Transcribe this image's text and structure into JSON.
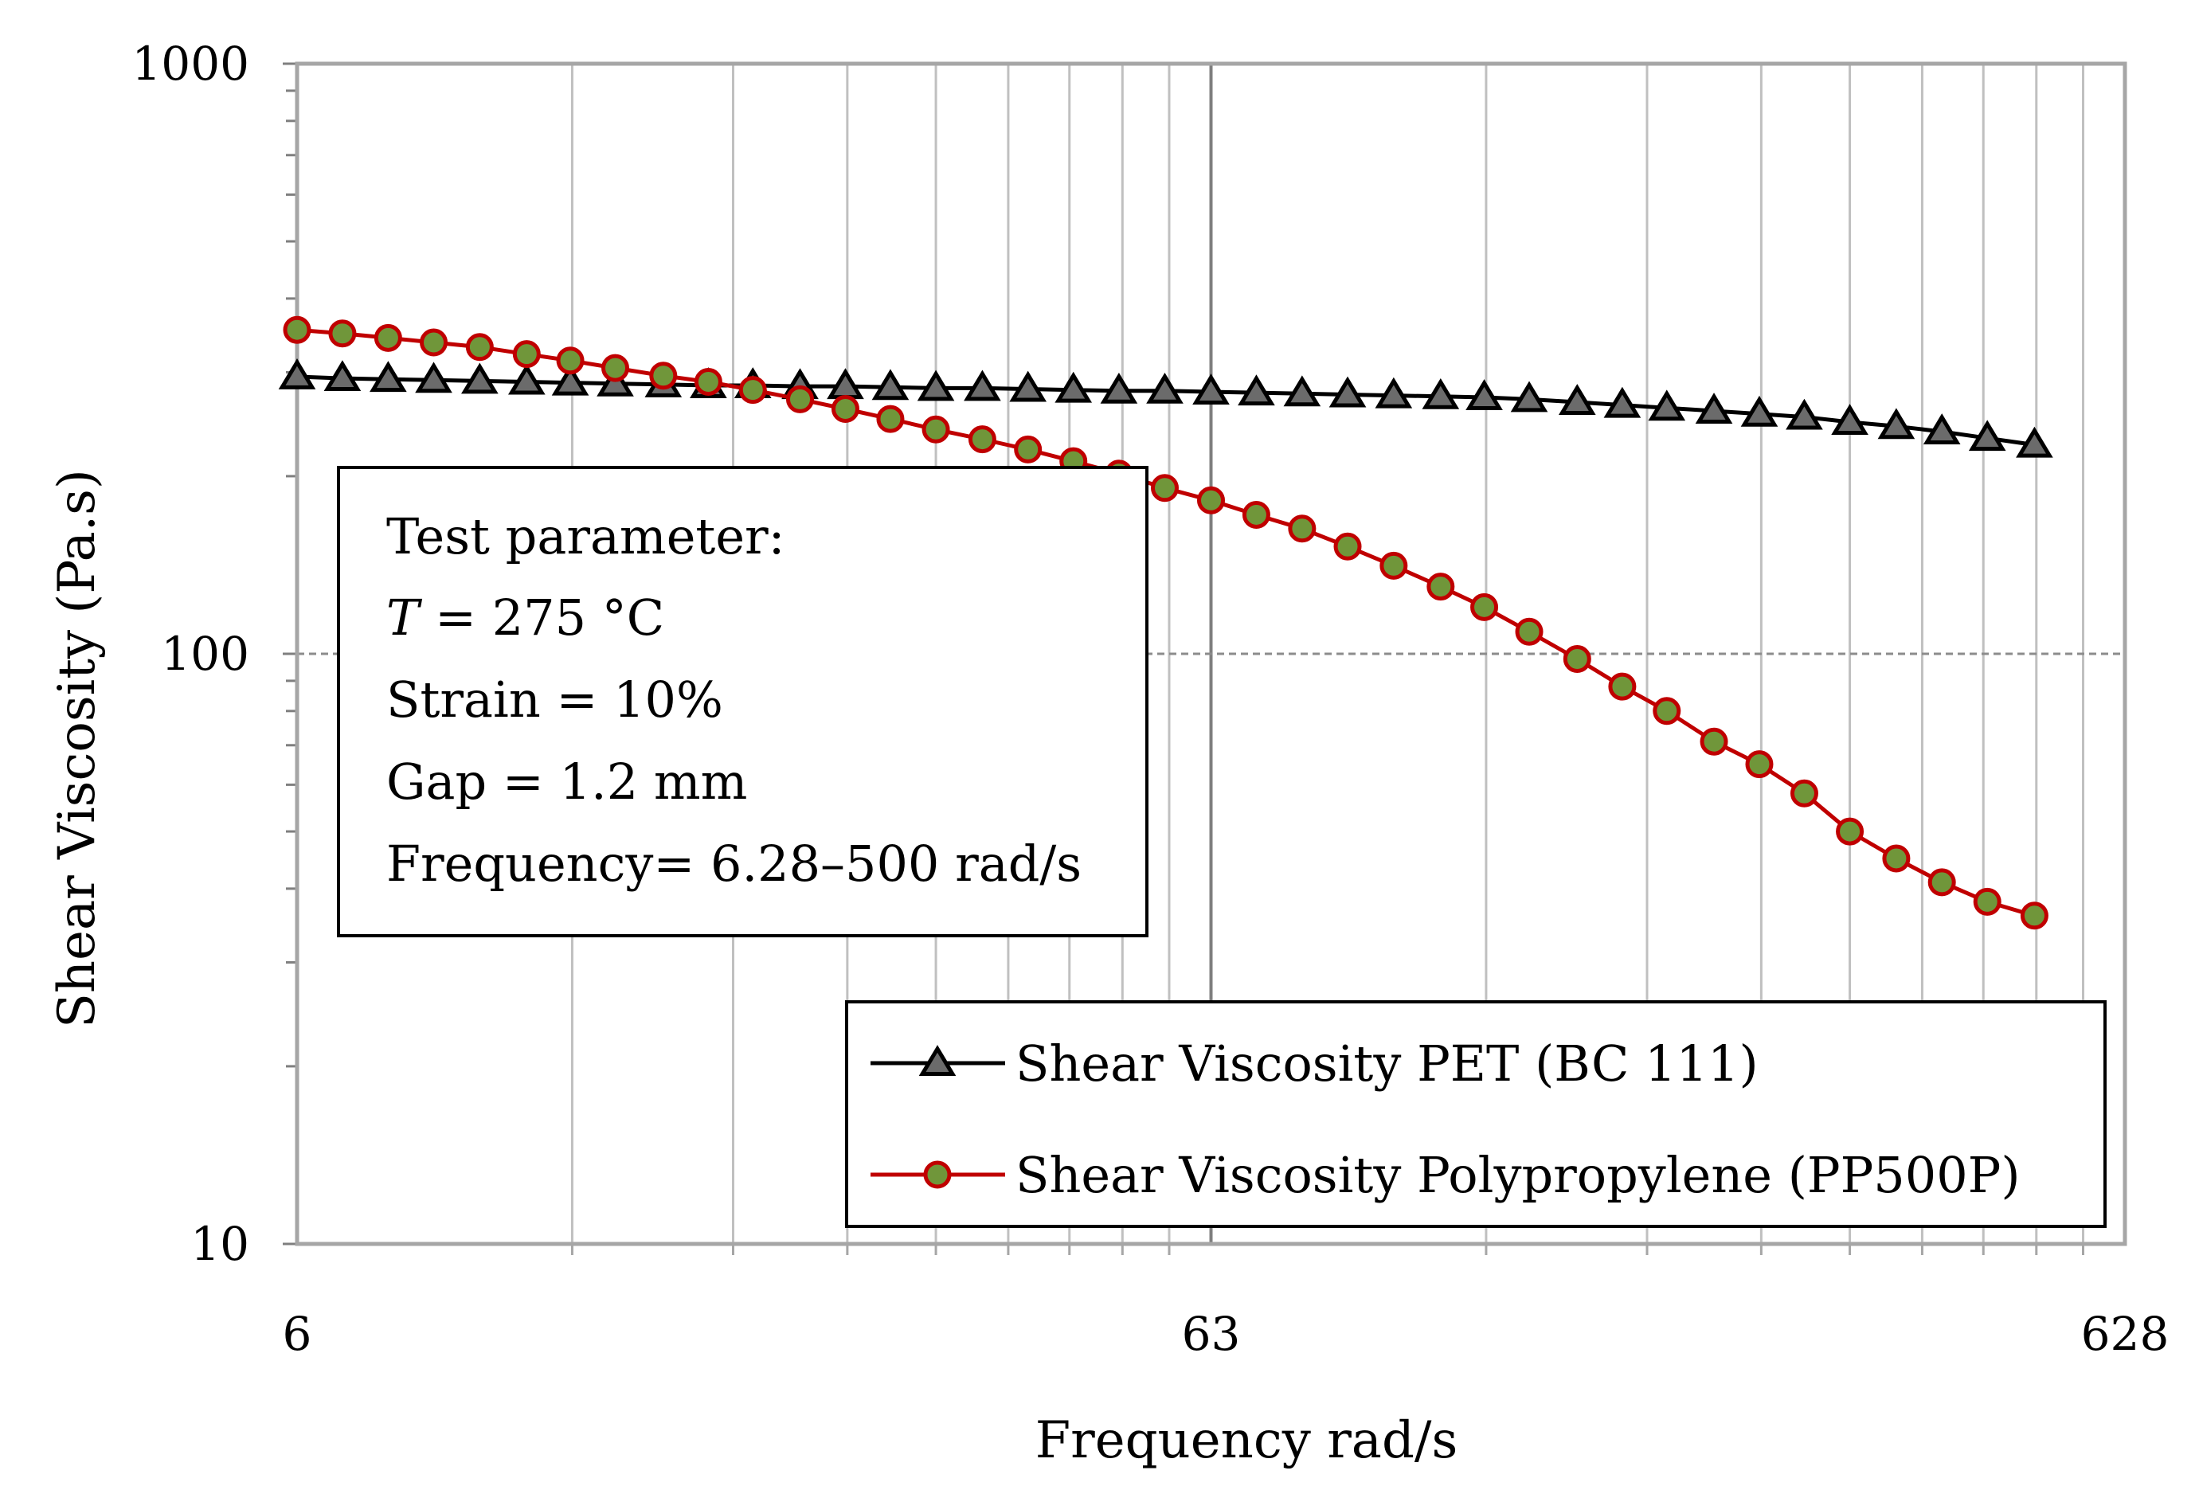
{
  "chart_data": {
    "type": "line",
    "title": "",
    "xlabel": "Frequency rad/s",
    "ylabel": "Shear Viscosity (Pa.s)",
    "x_scale": "log",
    "y_scale": "log",
    "xlim": [
      6.28,
      628
    ],
    "ylim": [
      10,
      1000
    ],
    "x_tick_labels": [
      {
        "value": 6.28,
        "label": "6"
      },
      {
        "value": 62.8,
        "label": "63"
      },
      {
        "value": 628,
        "label": "628"
      }
    ],
    "y_tick_labels": [
      {
        "value": 10,
        "label": "10"
      },
      {
        "value": 100,
        "label": "100"
      },
      {
        "value": 1000,
        "label": "1000"
      }
    ],
    "grid": true,
    "x": [
      6.28,
      7.04,
      7.9,
      8.86,
      9.95,
      11.2,
      12.5,
      14.0,
      15.8,
      17.7,
      19.8,
      22.3,
      25.0,
      28.0,
      31.4,
      35.3,
      39.6,
      44.4,
      49.8,
      55.9,
      62.8,
      70.4,
      79.0,
      88.6,
      99.5,
      112,
      125,
      140,
      158,
      177,
      198,
      223,
      250,
      280,
      314,
      353,
      396,
      444,
      500
    ],
    "series": [
      {
        "name": "Shear Viscosity PET (BC 111)",
        "color": "#000000",
        "marker": "triangle",
        "marker_fill": "#6b6b6b",
        "values": [
          295,
          293,
          292,
          291,
          290,
          289,
          288,
          287,
          286,
          285,
          285,
          284,
          284,
          283,
          282,
          282,
          281,
          280,
          279,
          279,
          278,
          277,
          276,
          275,
          274,
          273,
          272,
          270,
          267,
          264,
          261,
          258,
          255,
          252,
          247,
          243,
          238,
          232,
          226
        ]
      },
      {
        "name": "Shear Viscosity Polypropylene (PP500P)",
        "color": "#c00000",
        "marker": "circle",
        "marker_fill": "#70963a",
        "values": [
          354,
          349,
          343,
          337,
          331,
          322,
          314,
          305,
          296,
          289,
          280,
          270,
          260,
          250,
          240,
          231,
          222,
          212,
          202,
          191,
          182,
          172,
          163,
          152,
          141,
          130,
          120,
          109,
          98,
          88,
          80,
          71,
          65,
          58,
          50,
          45,
          41,
          38,
          36
        ]
      }
    ],
    "legend_position": "bottom-right",
    "annotations": {
      "title": "Test parameter:",
      "temperature_label": "T",
      "temperature_value": " = 275 °C",
      "strain": "Strain = 10%",
      "gap": "Gap = 1.2 mm",
      "frequency": "Frequency= 6.28–500 rad/s"
    }
  }
}
